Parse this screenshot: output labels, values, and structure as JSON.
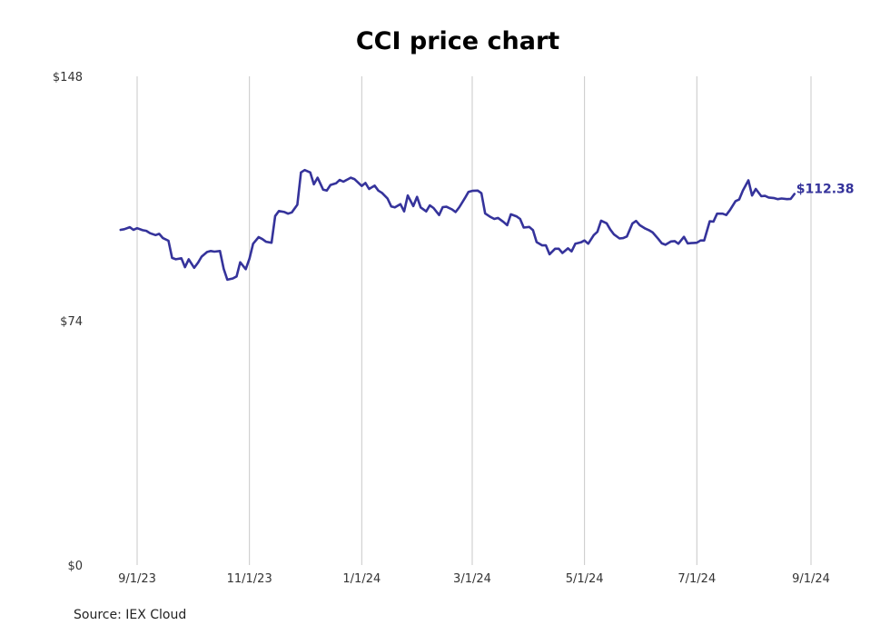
{
  "source": "Source: IEX Cloud",
  "chart_data": {
    "type": "line",
    "title": "CCI price chart",
    "xlabel": "",
    "ylabel": "",
    "ylim": [
      0,
      148
    ],
    "y_ticks": [
      {
        "value": 0,
        "label": "$0"
      },
      {
        "value": 74,
        "label": "$74"
      },
      {
        "value": 148,
        "label": "$148"
      }
    ],
    "x_ticks": [
      "2023-09-01",
      "2023-11-01",
      "2024-01-01",
      "2024-03-01",
      "2024-05-01",
      "2024-07-01",
      "2024-09-01"
    ],
    "x_tick_labels": [
      "9/1/23",
      "11/1/23",
      "1/1/24",
      "3/1/24",
      "5/1/24",
      "7/1/24",
      "9/1/24"
    ],
    "grid": {
      "vertical": true,
      "horizontal": false
    },
    "line_color": "#35339b",
    "end_label": "$112.38",
    "series": [
      {
        "points": [
          [
            "2023-08-23",
            101.5
          ],
          [
            "2023-08-25",
            101.7
          ],
          [
            "2023-08-28",
            102.3
          ],
          [
            "2023-08-30",
            101.5
          ],
          [
            "2023-09-01",
            102.0
          ],
          [
            "2023-09-04",
            101.4
          ],
          [
            "2023-09-06",
            101.2
          ],
          [
            "2023-09-08",
            100.5
          ],
          [
            "2023-09-11",
            99.9
          ],
          [
            "2023-09-13",
            100.3
          ],
          [
            "2023-09-15",
            99.0
          ],
          [
            "2023-09-18",
            98.2
          ],
          [
            "2023-09-20",
            93.0
          ],
          [
            "2023-09-22",
            92.6
          ],
          [
            "2023-09-25",
            92.9
          ],
          [
            "2023-09-27",
            90.2
          ],
          [
            "2023-09-29",
            92.6
          ],
          [
            "2023-10-02",
            90.0
          ],
          [
            "2023-10-04",
            91.5
          ],
          [
            "2023-10-06",
            93.4
          ],
          [
            "2023-10-09",
            94.8
          ],
          [
            "2023-10-11",
            95.1
          ],
          [
            "2023-10-13",
            94.9
          ],
          [
            "2023-10-16",
            95.1
          ],
          [
            "2023-10-18",
            89.7
          ],
          [
            "2023-10-20",
            86.4
          ],
          [
            "2023-10-23",
            86.8
          ],
          [
            "2023-10-25",
            87.4
          ],
          [
            "2023-10-27",
            91.7
          ],
          [
            "2023-10-30",
            89.6
          ],
          [
            "2023-11-01",
            92.8
          ],
          [
            "2023-11-03",
            97.3
          ],
          [
            "2023-11-06",
            99.3
          ],
          [
            "2023-11-08",
            98.7
          ],
          [
            "2023-11-10",
            97.9
          ],
          [
            "2023-11-13",
            97.6
          ],
          [
            "2023-11-15",
            105.7
          ],
          [
            "2023-11-17",
            107.2
          ],
          [
            "2023-11-20",
            106.9
          ],
          [
            "2023-11-22",
            106.4
          ],
          [
            "2023-11-24",
            106.8
          ],
          [
            "2023-11-27",
            109.1
          ],
          [
            "2023-11-29",
            118.9
          ],
          [
            "2023-12-01",
            119.6
          ],
          [
            "2023-12-04",
            118.9
          ],
          [
            "2023-12-06",
            115.3
          ],
          [
            "2023-12-08",
            117.3
          ],
          [
            "2023-12-11",
            113.7
          ],
          [
            "2023-12-13",
            113.4
          ],
          [
            "2023-12-15",
            115.1
          ],
          [
            "2023-12-18",
            115.6
          ],
          [
            "2023-12-20",
            116.6
          ],
          [
            "2023-12-22",
            116.1
          ],
          [
            "2023-12-26",
            117.3
          ],
          [
            "2023-12-28",
            116.9
          ],
          [
            "2024-01-01",
            114.8
          ],
          [
            "2024-01-03",
            115.7
          ],
          [
            "2024-01-05",
            113.9
          ],
          [
            "2024-01-08",
            114.9
          ],
          [
            "2024-01-10",
            113.4
          ],
          [
            "2024-01-12",
            112.7
          ],
          [
            "2024-01-15",
            111.0
          ],
          [
            "2024-01-17",
            108.6
          ],
          [
            "2024-01-19",
            108.3
          ],
          [
            "2024-01-22",
            109.3
          ],
          [
            "2024-01-24",
            107.1
          ],
          [
            "2024-01-26",
            111.9
          ],
          [
            "2024-01-29",
            108.7
          ],
          [
            "2024-01-31",
            111.5
          ],
          [
            "2024-02-02",
            108.3
          ],
          [
            "2024-02-05",
            107.1
          ],
          [
            "2024-02-07",
            108.9
          ],
          [
            "2024-02-09",
            108.1
          ],
          [
            "2024-02-12",
            106.0
          ],
          [
            "2024-02-14",
            108.4
          ],
          [
            "2024-02-16",
            108.5
          ],
          [
            "2024-02-19",
            107.7
          ],
          [
            "2024-02-21",
            106.9
          ],
          [
            "2024-02-23",
            108.4
          ],
          [
            "2024-02-26",
            111.1
          ],
          [
            "2024-02-28",
            113.0
          ],
          [
            "2024-03-01",
            113.3
          ],
          [
            "2024-03-04",
            113.4
          ],
          [
            "2024-03-06",
            112.6
          ],
          [
            "2024-03-08",
            106.5
          ],
          [
            "2024-03-11",
            105.4
          ],
          [
            "2024-03-13",
            104.8
          ],
          [
            "2024-03-15",
            105.1
          ],
          [
            "2024-03-18",
            103.9
          ],
          [
            "2024-03-20",
            102.9
          ],
          [
            "2024-03-22",
            106.2
          ],
          [
            "2024-03-25",
            105.6
          ],
          [
            "2024-03-27",
            104.8
          ],
          [
            "2024-03-29",
            102.2
          ],
          [
            "2024-04-01",
            102.4
          ],
          [
            "2024-04-03",
            101.4
          ],
          [
            "2024-04-05",
            97.8
          ],
          [
            "2024-04-08",
            96.8
          ],
          [
            "2024-04-10",
            96.8
          ],
          [
            "2024-04-12",
            94.1
          ],
          [
            "2024-04-15",
            95.8
          ],
          [
            "2024-04-17",
            95.8
          ],
          [
            "2024-04-19",
            94.5
          ],
          [
            "2024-04-22",
            95.9
          ],
          [
            "2024-04-24",
            95.0
          ],
          [
            "2024-04-26",
            97.3
          ],
          [
            "2024-04-29",
            97.7
          ],
          [
            "2024-05-01",
            98.3
          ],
          [
            "2024-05-03",
            97.3
          ],
          [
            "2024-05-06",
            99.9
          ],
          [
            "2024-05-08",
            100.9
          ],
          [
            "2024-05-10",
            104.3
          ],
          [
            "2024-05-13",
            103.5
          ],
          [
            "2024-05-15",
            101.6
          ],
          [
            "2024-05-17",
            100.1
          ],
          [
            "2024-05-20",
            98.9
          ],
          [
            "2024-05-22",
            99.0
          ],
          [
            "2024-05-24",
            99.5
          ],
          [
            "2024-05-27",
            103.4
          ],
          [
            "2024-05-29",
            104.2
          ],
          [
            "2024-05-31",
            102.9
          ],
          [
            "2024-06-03",
            101.9
          ],
          [
            "2024-06-05",
            101.4
          ],
          [
            "2024-06-07",
            100.7
          ],
          [
            "2024-06-10",
            98.8
          ],
          [
            "2024-06-12",
            97.4
          ],
          [
            "2024-06-14",
            97.0
          ],
          [
            "2024-06-17",
            98.0
          ],
          [
            "2024-06-19",
            98.1
          ],
          [
            "2024-06-21",
            97.3
          ],
          [
            "2024-06-24",
            99.4
          ],
          [
            "2024-06-26",
            97.4
          ],
          [
            "2024-06-28",
            97.5
          ],
          [
            "2024-07-01",
            97.6
          ],
          [
            "2024-07-03",
            98.3
          ],
          [
            "2024-07-05",
            98.3
          ],
          [
            "2024-07-08",
            104.1
          ],
          [
            "2024-07-10",
            104.0
          ],
          [
            "2024-07-12",
            106.4
          ],
          [
            "2024-07-15",
            106.4
          ],
          [
            "2024-07-17",
            106.0
          ],
          [
            "2024-07-19",
            107.5
          ],
          [
            "2024-07-22",
            110.2
          ],
          [
            "2024-07-24",
            110.7
          ],
          [
            "2024-07-26",
            113.4
          ],
          [
            "2024-07-29",
            116.5
          ],
          [
            "2024-07-31",
            111.9
          ],
          [
            "2024-08-02",
            113.9
          ],
          [
            "2024-08-05",
            111.7
          ],
          [
            "2024-08-07",
            111.8
          ],
          [
            "2024-08-09",
            111.3
          ],
          [
            "2024-08-12",
            111.1
          ],
          [
            "2024-08-14",
            110.8
          ],
          [
            "2024-08-16",
            111.0
          ],
          [
            "2024-08-19",
            110.8
          ],
          [
            "2024-08-21",
            110.9
          ],
          [
            "2024-08-23",
            112.38
          ]
        ]
      }
    ]
  }
}
